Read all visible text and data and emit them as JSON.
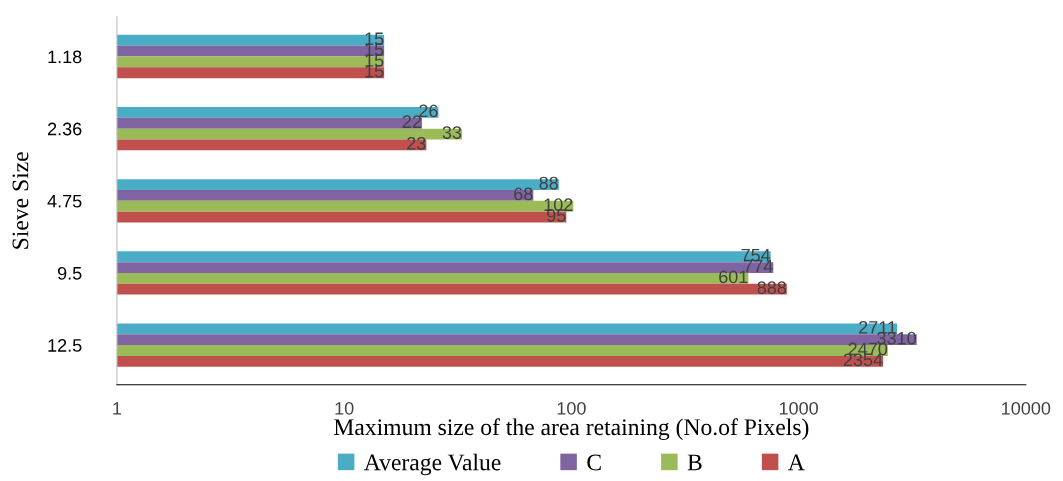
{
  "chart_data": {
    "type": "bar",
    "orientation": "horizontal",
    "xlabel": "Maximum size of the area retaining (No.of Pixels)",
    "ylabel": "Sieve Size",
    "categories": [
      "1.18",
      "2.36",
      "4.75",
      "9.5",
      "12.5"
    ],
    "series": [
      {
        "name": "Average Value",
        "color": "#4bacc6",
        "values": [
          15,
          26,
          88,
          754,
          2711
        ]
      },
      {
        "name": "C",
        "color": "#8064a2",
        "values": [
          15,
          22,
          68,
          774,
          3310
        ]
      },
      {
        "name": "B",
        "color": "#9bbb59",
        "values": [
          15,
          33,
          102,
          601,
          2470
        ]
      },
      {
        "name": "A",
        "color": "#c0504d",
        "values": [
          15,
          23,
          95,
          888,
          2354
        ]
      }
    ],
    "log": "x",
    "xlim": [
      1,
      10000
    ],
    "xticks": [
      1,
      10,
      100,
      1000,
      10000
    ],
    "data_labels": true,
    "legend": "bottom",
    "grid": false
  }
}
